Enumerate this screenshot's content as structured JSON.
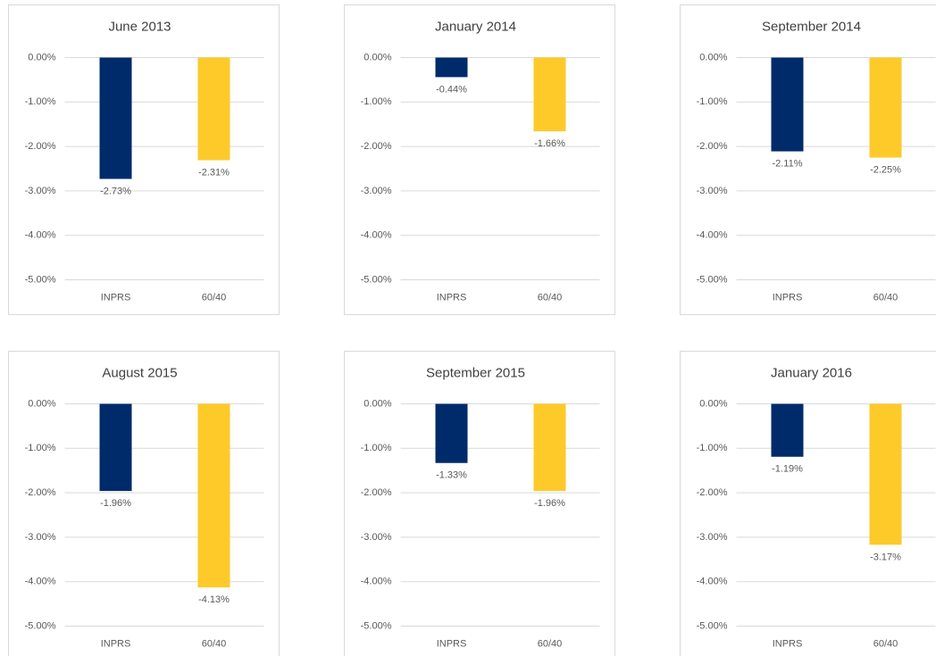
{
  "chart_data": [
    {
      "type": "bar",
      "title": "June 2013",
      "categories": [
        "INPRS",
        "60/40"
      ],
      "values": [
        -2.73,
        -2.31
      ],
      "value_labels": [
        "-2.73%",
        "-2.31%"
      ],
      "colors": [
        "#002b6b",
        "#fdca2a"
      ],
      "ylim": [
        -5,
        0
      ],
      "yticks": [
        {
          "value": 0,
          "label": "0.00%"
        },
        {
          "value": -1,
          "label": "-1.00%"
        },
        {
          "value": -2,
          "label": "-2.00%"
        },
        {
          "value": -3,
          "label": "-3.00%"
        },
        {
          "value": -4,
          "label": "-4.00%"
        },
        {
          "value": -5,
          "label": "-5.00%"
        }
      ],
      "grid": true
    },
    {
      "type": "bar",
      "title": "January 2014",
      "categories": [
        "INPRS",
        "60/40"
      ],
      "values": [
        -0.44,
        -1.66
      ],
      "value_labels": [
        "-0.44%",
        "-1.66%"
      ],
      "colors": [
        "#002b6b",
        "#fdca2a"
      ],
      "ylim": [
        -5,
        0
      ],
      "yticks": [
        {
          "value": 0,
          "label": "0.00%"
        },
        {
          "value": -1,
          "label": "-1.00%"
        },
        {
          "value": -2,
          "label": "-2.00%"
        },
        {
          "value": -3,
          "label": "-3.00%"
        },
        {
          "value": -4,
          "label": "-4.00%"
        },
        {
          "value": -5,
          "label": "-5.00%"
        }
      ],
      "grid": true
    },
    {
      "type": "bar",
      "title": "September 2014",
      "categories": [
        "INPRS",
        "60/40"
      ],
      "values": [
        -2.11,
        -2.25
      ],
      "value_labels": [
        "-2.11%",
        "-2.25%"
      ],
      "colors": [
        "#002b6b",
        "#fdca2a"
      ],
      "ylim": [
        -5,
        0
      ],
      "yticks": [
        {
          "value": 0,
          "label": "0.00%"
        },
        {
          "value": -1,
          "label": "-1.00%"
        },
        {
          "value": -2,
          "label": "-2.00%"
        },
        {
          "value": -3,
          "label": "-3.00%"
        },
        {
          "value": -4,
          "label": "-4.00%"
        },
        {
          "value": -5,
          "label": "-5.00%"
        }
      ],
      "grid": true
    },
    {
      "type": "bar",
      "title": "August 2015",
      "categories": [
        "INPRS",
        "60/40"
      ],
      "values": [
        -1.96,
        -4.13
      ],
      "value_labels": [
        "-1.96%",
        "-4.13%"
      ],
      "colors": [
        "#002b6b",
        "#fdca2a"
      ],
      "ylim": [
        -5,
        0
      ],
      "yticks": [
        {
          "value": 0,
          "label": "0.00%"
        },
        {
          "value": -1,
          "label": "-1.00%"
        },
        {
          "value": -2,
          "label": "-2.00%"
        },
        {
          "value": -3,
          "label": "-3.00%"
        },
        {
          "value": -4,
          "label": "-4.00%"
        },
        {
          "value": -5,
          "label": "-5.00%"
        }
      ],
      "grid": true
    },
    {
      "type": "bar",
      "title": "September 2015",
      "categories": [
        "INPRS",
        "60/40"
      ],
      "values": [
        -1.33,
        -1.96
      ],
      "value_labels": [
        "-1.33%",
        "-1.96%"
      ],
      "colors": [
        "#002b6b",
        "#fdca2a"
      ],
      "ylim": [
        -5,
        0
      ],
      "yticks": [
        {
          "value": 0,
          "label": "0.00%"
        },
        {
          "value": -1,
          "label": "-1.00%"
        },
        {
          "value": -2,
          "label": "-2.00%"
        },
        {
          "value": -3,
          "label": "-3.00%"
        },
        {
          "value": -4,
          "label": "-4.00%"
        },
        {
          "value": -5,
          "label": "-5.00%"
        }
      ],
      "grid": true
    },
    {
      "type": "bar",
      "title": "January 2016",
      "categories": [
        "INPRS",
        "60/40"
      ],
      "values": [
        -1.19,
        -3.17
      ],
      "value_labels": [
        "-1.19%",
        "-3.17%"
      ],
      "colors": [
        "#002b6b",
        "#fdca2a"
      ],
      "ylim": [
        -5,
        0
      ],
      "yticks": [
        {
          "value": 0,
          "label": "0.00%"
        },
        {
          "value": -1,
          "label": "-1.00%"
        },
        {
          "value": -2,
          "label": "-2.00%"
        },
        {
          "value": -3,
          "label": "-3.00%"
        },
        {
          "value": -4,
          "label": "-4.00%"
        },
        {
          "value": -5,
          "label": "-5.00%"
        }
      ],
      "grid": true
    }
  ]
}
